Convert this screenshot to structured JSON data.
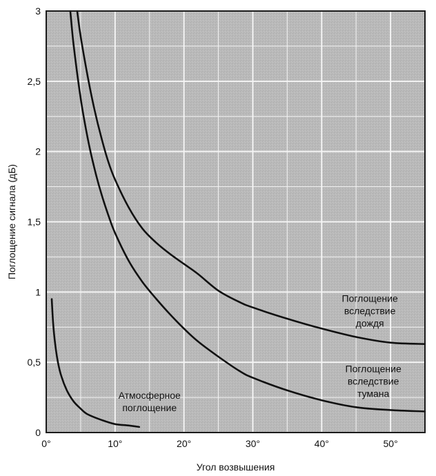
{
  "chart_data": {
    "type": "line",
    "title": "",
    "xlabel": "Угол возвышения",
    "ylabel": "Поглощение сигнала (дБ)",
    "xlim": [
      0,
      55
    ],
    "ylim": [
      0,
      3
    ],
    "grid": true,
    "x_ticks": [
      0,
      10,
      20,
      30,
      40,
      50
    ],
    "x_tick_labels": [
      "0°",
      "10°",
      "20°",
      "30°",
      "40°",
      "50°"
    ],
    "y_ticks": [
      0,
      0.5,
      1,
      1.5,
      2,
      2.5,
      3
    ],
    "y_tick_labels": [
      "0",
      "0,5",
      "1",
      "1,5",
      "2",
      "2,5",
      "3"
    ],
    "series": [
      {
        "name": "Поглощение вследствие дождя",
        "x": [
          4.5,
          5,
          6,
          7,
          8,
          9,
          10,
          12,
          14,
          16,
          18,
          20,
          22,
          25,
          28,
          30,
          35,
          40,
          45,
          50,
          55
        ],
        "y": [
          3.0,
          2.82,
          2.54,
          2.3,
          2.1,
          1.93,
          1.8,
          1.6,
          1.45,
          1.35,
          1.27,
          1.2,
          1.13,
          1.01,
          0.93,
          0.89,
          0.81,
          0.74,
          0.68,
          0.64,
          0.63
        ]
      },
      {
        "name": "Поглощение вследствие тумана",
        "x": [
          3.5,
          4,
          5,
          6,
          7,
          8,
          9,
          10,
          12,
          14,
          16,
          18,
          20,
          22,
          25,
          28,
          30,
          35,
          40,
          45,
          50,
          55
        ],
        "y": [
          3.0,
          2.75,
          2.38,
          2.1,
          1.88,
          1.7,
          1.55,
          1.42,
          1.22,
          1.07,
          0.95,
          0.84,
          0.74,
          0.65,
          0.54,
          0.44,
          0.39,
          0.3,
          0.23,
          0.18,
          0.16,
          0.15
        ]
      },
      {
        "name": "Атмосферное поглощение",
        "x": [
          0.8,
          1,
          1.3,
          1.7,
          2.2,
          3,
          4,
          5,
          6,
          8,
          10,
          12,
          13.5
        ],
        "y": [
          0.95,
          0.78,
          0.63,
          0.5,
          0.4,
          0.3,
          0.22,
          0.17,
          0.13,
          0.09,
          0.06,
          0.05,
          0.04
        ]
      }
    ],
    "annotations": [
      {
        "lines": [
          "Поглощение",
          "вследствие",
          "дождя"
        ],
        "x": 47,
        "y": 0.93
      },
      {
        "lines": [
          "Поглощение",
          "вследствие",
          "тумана"
        ],
        "x": 47.5,
        "y": 0.43
      },
      {
        "lines": [
          "Атмосферное",
          "поглощение"
        ],
        "x": 15,
        "y": 0.24
      }
    ]
  }
}
